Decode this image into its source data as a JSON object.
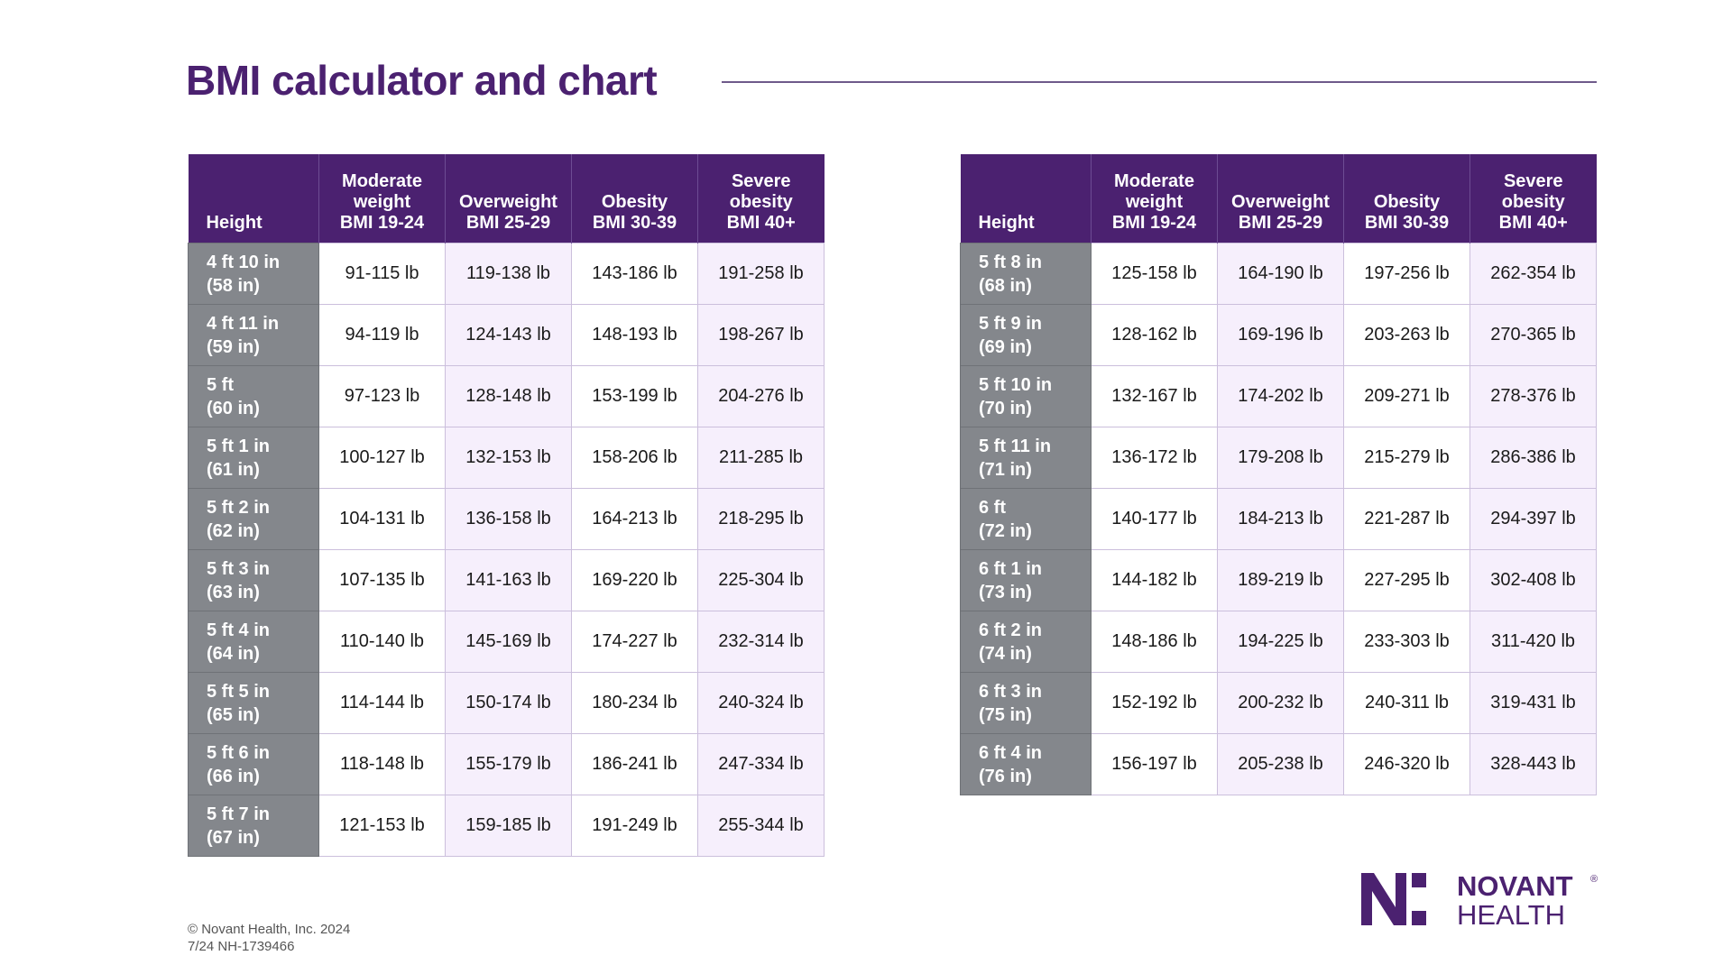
{
  "header": {
    "title": "BMI calculator and chart"
  },
  "tables": [
    {
      "columns": [
        [
          "Height"
        ],
        [
          "Moderate",
          "weight",
          "BMI 19-24"
        ],
        [
          "Overweight",
          "BMI 25-29"
        ],
        [
          "Obesity",
          "BMI 30-39"
        ],
        [
          "Severe",
          "obesity",
          "BMI 40+"
        ]
      ],
      "rows": [
        {
          "height": [
            "4 ft 10 in",
            "(58 in)"
          ],
          "values": [
            "91-115 lb",
            "119-138 lb",
            "143-186 lb",
            "191-258 lb"
          ]
        },
        {
          "height": [
            "4 ft 11 in",
            "(59 in)"
          ],
          "values": [
            "94-119 lb",
            "124-143 lb",
            "148-193 lb",
            "198-267 lb"
          ]
        },
        {
          "height": [
            "5 ft",
            "(60 in)"
          ],
          "values": [
            "97-123 lb",
            "128-148 lb",
            "153-199 lb",
            "204-276 lb"
          ]
        },
        {
          "height": [
            "5 ft 1 in",
            "(61 in)"
          ],
          "values": [
            "100-127 lb",
            "132-153 lb",
            "158-206 lb",
            "211-285 lb"
          ]
        },
        {
          "height": [
            "5 ft 2 in",
            "(62 in)"
          ],
          "values": [
            "104-131 lb",
            "136-158 lb",
            "164-213 lb",
            "218-295 lb"
          ]
        },
        {
          "height": [
            "5 ft 3 in",
            "(63 in)"
          ],
          "values": [
            "107-135 lb",
            "141-163 lb",
            "169-220 lb",
            "225-304 lb"
          ]
        },
        {
          "height": [
            "5 ft 4 in",
            "(64 in)"
          ],
          "values": [
            "110-140 lb",
            "145-169 lb",
            "174-227 lb",
            "232-314 lb"
          ]
        },
        {
          "height": [
            "5 ft 5 in",
            "(65 in)"
          ],
          "values": [
            "114-144 lb",
            "150-174 lb",
            "180-234 lb",
            "240-324 lb"
          ]
        },
        {
          "height": [
            "5 ft 6 in",
            "(66 in)"
          ],
          "values": [
            "118-148 lb",
            "155-179 lb",
            "186-241 lb",
            "247-334 lb"
          ]
        },
        {
          "height": [
            "5 ft 7 in",
            "(67 in)"
          ],
          "values": [
            "121-153 lb",
            "159-185 lb",
            "191-249 lb",
            "255-344 lb"
          ]
        }
      ]
    },
    {
      "columns": [
        [
          "Height"
        ],
        [
          "Moderate",
          "weight",
          "BMI 19-24"
        ],
        [
          "Overweight",
          "BMI 25-29"
        ],
        [
          "Obesity",
          "BMI 30-39"
        ],
        [
          "Severe",
          "obesity",
          "BMI 40+"
        ]
      ],
      "rows": [
        {
          "height": [
            "5 ft 8 in",
            "(68 in)"
          ],
          "values": [
            "125-158 lb",
            "164-190 lb",
            "197-256 lb",
            "262-354 lb"
          ]
        },
        {
          "height": [
            "5 ft 9 in",
            "(69 in)"
          ],
          "values": [
            "128-162 lb",
            "169-196 lb",
            "203-263 lb",
            "270-365 lb"
          ]
        },
        {
          "height": [
            "5 ft 10 in",
            "(70 in)"
          ],
          "values": [
            "132-167 lb",
            "174-202 lb",
            "209-271 lb",
            "278-376 lb"
          ]
        },
        {
          "height": [
            "5 ft 11 in",
            "(71 in)"
          ],
          "values": [
            "136-172 lb",
            "179-208 lb",
            "215-279 lb",
            "286-386 lb"
          ]
        },
        {
          "height": [
            "6 ft",
            "(72 in)"
          ],
          "values": [
            "140-177 lb",
            "184-213 lb",
            "221-287 lb",
            "294-397 lb"
          ]
        },
        {
          "height": [
            "6 ft 1 in",
            "(73 in)"
          ],
          "values": [
            "144-182 lb",
            "189-219 lb",
            "227-295 lb",
            "302-408 lb"
          ]
        },
        {
          "height": [
            "6 ft 2 in",
            "(74 in)"
          ],
          "values": [
            "148-186 lb",
            "194-225 lb",
            "233-303 lb",
            "311-420 lb"
          ]
        },
        {
          "height": [
            "6 ft 3 in",
            "(75 in)"
          ],
          "values": [
            "152-192 lb",
            "200-232 lb",
            "240-311 lb",
            "319-431 lb"
          ]
        },
        {
          "height": [
            "6 ft 4 in",
            "(76 in)"
          ],
          "values": [
            "156-197 lb",
            "205-238 lb",
            "246-320 lb",
            "328-443 lb"
          ]
        }
      ]
    }
  ],
  "footer": {
    "copyright": "© Novant Health, Inc. 2024",
    "code": "7/24 NH-1739466"
  },
  "logo": {
    "line1": "NOVANT",
    "registered": "®",
    "line2": "HEALTH"
  }
}
